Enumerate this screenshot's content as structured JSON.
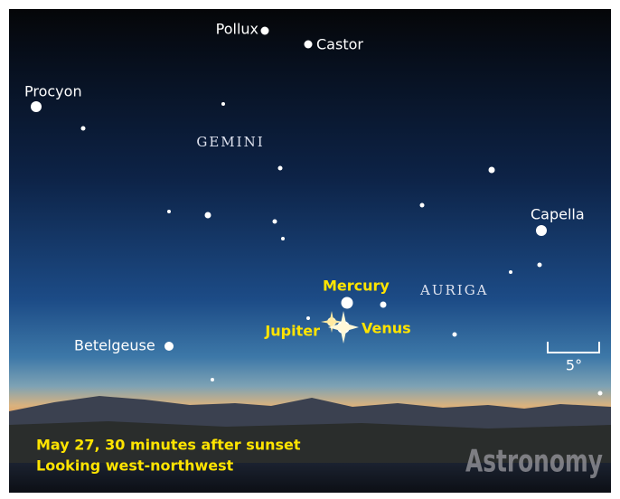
{
  "stars": [
    {
      "label": "Pollux"
    },
    {
      "label": "Castor"
    },
    {
      "label": "Procyon"
    },
    {
      "label": "Capella"
    },
    {
      "label": "Betelgeuse"
    }
  ],
  "constellations": [
    {
      "label": "GEMINI"
    },
    {
      "label": "AURIGA"
    }
  ],
  "planets": [
    {
      "label": "Mercury"
    },
    {
      "label": "Jupiter"
    },
    {
      "label": "Venus"
    }
  ],
  "scale": {
    "label": "5°"
  },
  "caption": {
    "lines": [
      "May 27, 30 minutes after sunset",
      "Looking west-northwest"
    ]
  },
  "watermark": "Astronomy"
}
